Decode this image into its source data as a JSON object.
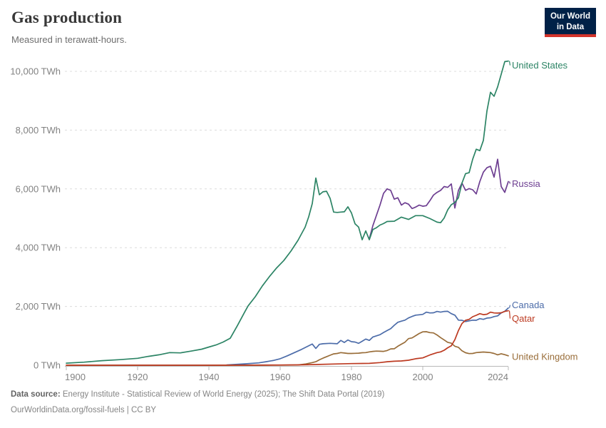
{
  "header": {
    "title": "Gas production",
    "subtitle": "Measured in terawatt-hours.",
    "logo": {
      "line1": "Our World",
      "line2": "in Data",
      "bg": "#002147",
      "accent": "#D3342B"
    }
  },
  "chart_data": {
    "type": "line",
    "title": "Gas production",
    "unit": "TWh",
    "grid": "dashed",
    "legend_position": "right-of-line-end",
    "x_axis": {
      "range": [
        1900,
        2024
      ],
      "ticks": [
        {
          "value": 1900,
          "label": "1900"
        },
        {
          "value": 1920,
          "label": "1920"
        },
        {
          "value": 1940,
          "label": "1940"
        },
        {
          "value": 1960,
          "label": "1960"
        },
        {
          "value": 1980,
          "label": "1980"
        },
        {
          "value": 2000,
          "label": "2000"
        },
        {
          "value": 2024,
          "label": "2024"
        }
      ]
    },
    "y_axis": {
      "range": [
        0,
        10000
      ],
      "ticks": [
        {
          "value": 0,
          "label": "0 TWh"
        },
        {
          "value": 2000,
          "label": "2,000 TWh"
        },
        {
          "value": 4000,
          "label": "4,000 TWh"
        },
        {
          "value": 6000,
          "label": "6,000 TWh"
        },
        {
          "value": 8000,
          "label": "8,000 TWh"
        },
        {
          "value": 10000,
          "label": "10,000 TWh"
        }
      ]
    },
    "series": [
      {
        "name": "Canada",
        "color": "#4C6CA9",
        "label_dy": -4,
        "points": [
          [
            1945,
            10
          ],
          [
            1950,
            45
          ],
          [
            1954,
            80
          ],
          [
            1956,
            120
          ],
          [
            1958,
            160
          ],
          [
            1960,
            220
          ],
          [
            1962,
            320
          ],
          [
            1964,
            430
          ],
          [
            1966,
            540
          ],
          [
            1968,
            660
          ],
          [
            1969,
            720
          ],
          [
            1970,
            570
          ],
          [
            1971,
            710
          ],
          [
            1972,
            730
          ],
          [
            1974,
            745
          ],
          [
            1976,
            730
          ],
          [
            1977,
            845
          ],
          [
            1978,
            775
          ],
          [
            1979,
            860
          ],
          [
            1980,
            800
          ],
          [
            1981,
            790
          ],
          [
            1982,
            745
          ],
          [
            1983,
            815
          ],
          [
            1984,
            890
          ],
          [
            1985,
            845
          ],
          [
            1986,
            960
          ],
          [
            1987,
            1000
          ],
          [
            1988,
            1040
          ],
          [
            1989,
            1115
          ],
          [
            1990,
            1180
          ],
          [
            1991,
            1245
          ],
          [
            1992,
            1360
          ],
          [
            1993,
            1460
          ],
          [
            1994,
            1500
          ],
          [
            1995,
            1535
          ],
          [
            1996,
            1610
          ],
          [
            1997,
            1660
          ],
          [
            1998,
            1705
          ],
          [
            1999,
            1715
          ],
          [
            2000,
            1730
          ],
          [
            2001,
            1805
          ],
          [
            2002,
            1780
          ],
          [
            2003,
            1785
          ],
          [
            2004,
            1830
          ],
          [
            2005,
            1805
          ],
          [
            2006,
            1830
          ],
          [
            2007,
            1835
          ],
          [
            2008,
            1755
          ],
          [
            2009,
            1705
          ],
          [
            2010,
            1535
          ],
          [
            2011,
            1530
          ],
          [
            2012,
            1485
          ],
          [
            2013,
            1510
          ],
          [
            2014,
            1535
          ],
          [
            2015,
            1530
          ],
          [
            2016,
            1585
          ],
          [
            2017,
            1560
          ],
          [
            2018,
            1605
          ],
          [
            2019,
            1615
          ],
          [
            2020,
            1655
          ],
          [
            2021,
            1680
          ],
          [
            2022,
            1780
          ],
          [
            2023,
            1835
          ],
          [
            2024,
            1950
          ]
        ]
      },
      {
        "name": "United Kingdom",
        "color": "#996D39",
        "label_dy": 1,
        "points": [
          [
            1900,
            0
          ],
          [
            1955,
            0
          ],
          [
            1960,
            3
          ],
          [
            1965,
            10
          ],
          [
            1967,
            40
          ],
          [
            1969,
            90
          ],
          [
            1970,
            120
          ],
          [
            1971,
            185
          ],
          [
            1972,
            240
          ],
          [
            1973,
            290
          ],
          [
            1974,
            340
          ],
          [
            1975,
            385
          ],
          [
            1976,
            400
          ],
          [
            1977,
            430
          ],
          [
            1978,
            415
          ],
          [
            1979,
            400
          ],
          [
            1980,
            400
          ],
          [
            1981,
            405
          ],
          [
            1982,
            410
          ],
          [
            1983,
            425
          ],
          [
            1984,
            430
          ],
          [
            1985,
            455
          ],
          [
            1986,
            470
          ],
          [
            1987,
            480
          ],
          [
            1988,
            475
          ],
          [
            1989,
            470
          ],
          [
            1990,
            500
          ],
          [
            1991,
            555
          ],
          [
            1992,
            560
          ],
          [
            1993,
            645
          ],
          [
            1994,
            715
          ],
          [
            1995,
            785
          ],
          [
            1996,
            905
          ],
          [
            1997,
            930
          ],
          [
            1998,
            1005
          ],
          [
            1999,
            1080
          ],
          [
            2000,
            1135
          ],
          [
            2001,
            1140
          ],
          [
            2002,
            1110
          ],
          [
            2003,
            1100
          ],
          [
            2004,
            1030
          ],
          [
            2005,
            940
          ],
          [
            2006,
            860
          ],
          [
            2007,
            780
          ],
          [
            2008,
            750
          ],
          [
            2009,
            645
          ],
          [
            2010,
            610
          ],
          [
            2011,
            490
          ],
          [
            2012,
            425
          ],
          [
            2013,
            395
          ],
          [
            2014,
            400
          ],
          [
            2015,
            430
          ],
          [
            2016,
            440
          ],
          [
            2017,
            450
          ],
          [
            2018,
            440
          ],
          [
            2019,
            430
          ],
          [
            2020,
            400
          ],
          [
            2021,
            355
          ],
          [
            2022,
            390
          ],
          [
            2023,
            360
          ],
          [
            2024,
            320
          ]
        ]
      },
      {
        "name": "Qatar",
        "color": "#BC3A21",
        "label_dy": 11,
        "points": [
          [
            1900,
            0
          ],
          [
            1940,
            0
          ],
          [
            1950,
            2
          ],
          [
            1960,
            8
          ],
          [
            1965,
            12
          ],
          [
            1970,
            25
          ],
          [
            1975,
            42
          ],
          [
            1980,
            55
          ],
          [
            1985,
            62
          ],
          [
            1988,
            90
          ],
          [
            1990,
            120
          ],
          [
            1992,
            135
          ],
          [
            1994,
            145
          ],
          [
            1996,
            170
          ],
          [
            1998,
            220
          ],
          [
            2000,
            250
          ],
          [
            2002,
            350
          ],
          [
            2004,
            430
          ],
          [
            2005,
            455
          ],
          [
            2006,
            510
          ],
          [
            2007,
            595
          ],
          [
            2008,
            660
          ],
          [
            2009,
            870
          ],
          [
            2010,
            1180
          ],
          [
            2011,
            1420
          ],
          [
            2012,
            1530
          ],
          [
            2013,
            1560
          ],
          [
            2014,
            1650
          ],
          [
            2015,
            1700
          ],
          [
            2016,
            1755
          ],
          [
            2017,
            1720
          ],
          [
            2018,
            1735
          ],
          [
            2019,
            1805
          ],
          [
            2020,
            1780
          ],
          [
            2021,
            1775
          ],
          [
            2022,
            1785
          ],
          [
            2023,
            1830
          ],
          [
            2024,
            1855
          ]
        ]
      },
      {
        "name": "Russia",
        "color": "#6D3E91",
        "label_dy": 3,
        "points": [
          [
            1985,
            4300
          ],
          [
            1986,
            4750
          ],
          [
            1987,
            5100
          ],
          [
            1988,
            5450
          ],
          [
            1989,
            5850
          ],
          [
            1990,
            6000
          ],
          [
            1991,
            5950
          ],
          [
            1992,
            5650
          ],
          [
            1993,
            5700
          ],
          [
            1994,
            5450
          ],
          [
            1995,
            5530
          ],
          [
            1996,
            5480
          ],
          [
            1997,
            5330
          ],
          [
            1998,
            5380
          ],
          [
            1999,
            5450
          ],
          [
            2000,
            5410
          ],
          [
            2001,
            5430
          ],
          [
            2002,
            5600
          ],
          [
            2003,
            5790
          ],
          [
            2004,
            5880
          ],
          [
            2005,
            5950
          ],
          [
            2006,
            6080
          ],
          [
            2007,
            6050
          ],
          [
            2008,
            6170
          ],
          [
            2009,
            5350
          ],
          [
            2010,
            5950
          ],
          [
            2011,
            6200
          ],
          [
            2012,
            5950
          ],
          [
            2013,
            6010
          ],
          [
            2014,
            5970
          ],
          [
            2015,
            5830
          ],
          [
            2016,
            6250
          ],
          [
            2017,
            6570
          ],
          [
            2018,
            6720
          ],
          [
            2019,
            6770
          ],
          [
            2020,
            6400
          ],
          [
            2021,
            7010
          ],
          [
            2022,
            6080
          ],
          [
            2023,
            5880
          ],
          [
            2024,
            6250
          ]
        ]
      },
      {
        "name": "United States",
        "color": "#2C8465",
        "label_dy": 6,
        "points": [
          [
            1900,
            70
          ],
          [
            1905,
            105
          ],
          [
            1910,
            155
          ],
          [
            1915,
            190
          ],
          [
            1920,
            235
          ],
          [
            1923,
            300
          ],
          [
            1926,
            355
          ],
          [
            1929,
            430
          ],
          [
            1932,
            420
          ],
          [
            1935,
            480
          ],
          [
            1938,
            545
          ],
          [
            1940,
            620
          ],
          [
            1942,
            690
          ],
          [
            1944,
            790
          ],
          [
            1946,
            920
          ],
          [
            1948,
            1350
          ],
          [
            1950,
            1800
          ],
          [
            1951,
            2020
          ],
          [
            1953,
            2330
          ],
          [
            1955,
            2700
          ],
          [
            1957,
            3020
          ],
          [
            1959,
            3310
          ],
          [
            1961,
            3560
          ],
          [
            1963,
            3880
          ],
          [
            1965,
            4250
          ],
          [
            1967,
            4700
          ],
          [
            1968,
            5050
          ],
          [
            1969,
            5500
          ],
          [
            1970,
            6370
          ],
          [
            1971,
            5800
          ],
          [
            1972,
            5900
          ],
          [
            1973,
            5920
          ],
          [
            1974,
            5680
          ],
          [
            1975,
            5210
          ],
          [
            1976,
            5200
          ],
          [
            1977,
            5210
          ],
          [
            1978,
            5220
          ],
          [
            1979,
            5390
          ],
          [
            1980,
            5180
          ],
          [
            1981,
            4810
          ],
          [
            1982,
            4700
          ],
          [
            1983,
            4270
          ],
          [
            1984,
            4570
          ],
          [
            1985,
            4270
          ],
          [
            1986,
            4620
          ],
          [
            1987,
            4680
          ],
          [
            1988,
            4770
          ],
          [
            1989,
            4820
          ],
          [
            1990,
            4890
          ],
          [
            1992,
            4900
          ],
          [
            1994,
            5040
          ],
          [
            1996,
            4960
          ],
          [
            1998,
            5090
          ],
          [
            2000,
            5090
          ],
          [
            2002,
            4990
          ],
          [
            2004,
            4870
          ],
          [
            2005,
            4850
          ],
          [
            2006,
            5010
          ],
          [
            2007,
            5290
          ],
          [
            2008,
            5460
          ],
          [
            2009,
            5540
          ],
          [
            2010,
            5700
          ],
          [
            2011,
            6200
          ],
          [
            2012,
            6520
          ],
          [
            2013,
            6550
          ],
          [
            2014,
            7010
          ],
          [
            2015,
            7350
          ],
          [
            2016,
            7300
          ],
          [
            2017,
            7650
          ],
          [
            2018,
            8650
          ],
          [
            2019,
            9290
          ],
          [
            2020,
            9150
          ],
          [
            2021,
            9470
          ],
          [
            2022,
            9900
          ],
          [
            2023,
            10330
          ],
          [
            2024,
            10350
          ]
        ]
      }
    ]
  },
  "footer": {
    "source_label": "Data source:",
    "source_text": "Energy Institute - Statistical Review of World Energy (2025); The Shift Data Portal (2019)",
    "link": "OurWorldinData.org/fossil-fuels | CC BY"
  }
}
